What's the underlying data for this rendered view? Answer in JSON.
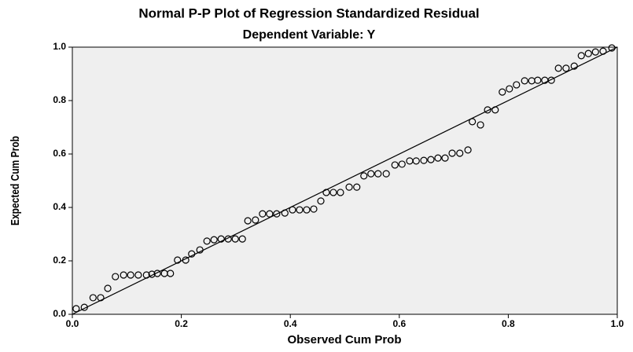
{
  "chart_data": {
    "type": "scatter",
    "title": "Normal P-P Plot of Regression Standardized Residual",
    "subtitle": "Dependent Variable: Y",
    "x_label": "Observed Cum Prob",
    "y_label": "Expected Cum Prob",
    "xlim": [
      0,
      1
    ],
    "ylim": [
      0,
      1
    ],
    "xticks": [
      {
        "value": 0,
        "label": "0.0"
      },
      0.2,
      0.4,
      0.6,
      0.8,
      {
        "value": 1,
        "label": "1.0"
      }
    ],
    "yticks": [
      {
        "value": 0,
        "label": "0.0"
      },
      0.2,
      0.4,
      0.6,
      0.8,
      {
        "value": 1,
        "label": "1.0"
      }
    ],
    "reference_line": true,
    "series": [
      {
        "color": "#000000",
        "x": [
          0.007,
          0.022,
          0.038,
          0.052,
          0.065,
          0.079,
          0.094,
          0.107,
          0.121,
          0.136,
          0.146,
          0.156,
          0.169,
          0.18,
          0.193,
          0.208,
          0.219,
          0.234,
          0.247,
          0.26,
          0.273,
          0.286,
          0.299,
          0.312,
          0.322,
          0.336,
          0.349,
          0.362,
          0.375,
          0.39,
          0.404,
          0.417,
          0.43,
          0.443,
          0.456,
          0.466,
          0.479,
          0.492,
          0.508,
          0.522,
          0.535,
          0.548,
          0.561,
          0.576,
          0.592,
          0.605,
          0.619,
          0.631,
          0.645,
          0.658,
          0.671,
          0.684,
          0.697,
          0.711,
          0.726,
          0.734,
          0.749,
          0.762,
          0.776,
          0.789,
          0.802,
          0.815,
          0.83,
          0.843,
          0.854,
          0.867,
          0.879,
          0.892,
          0.906,
          0.921,
          0.934,
          0.947,
          0.96,
          0.974,
          0.99
        ],
        "values": [
          0.021,
          0.026,
          0.062,
          0.062,
          0.097,
          0.141,
          0.147,
          0.147,
          0.147,
          0.147,
          0.15,
          0.153,
          0.153,
          0.153,
          0.203,
          0.203,
          0.226,
          0.241,
          0.274,
          0.279,
          0.282,
          0.282,
          0.282,
          0.282,
          0.35,
          0.353,
          0.376,
          0.376,
          0.376,
          0.379,
          0.391,
          0.391,
          0.391,
          0.394,
          0.424,
          0.456,
          0.456,
          0.456,
          0.476,
          0.476,
          0.518,
          0.526,
          0.526,
          0.526,
          0.559,
          0.562,
          0.574,
          0.574,
          0.576,
          0.579,
          0.585,
          0.585,
          0.603,
          0.603,
          0.615,
          0.721,
          0.709,
          0.765,
          0.765,
          0.832,
          0.844,
          0.859,
          0.874,
          0.874,
          0.876,
          0.876,
          0.876,
          0.921,
          0.921,
          0.929,
          0.968,
          0.976,
          0.982,
          0.985,
          0.997
        ]
      }
    ]
  }
}
